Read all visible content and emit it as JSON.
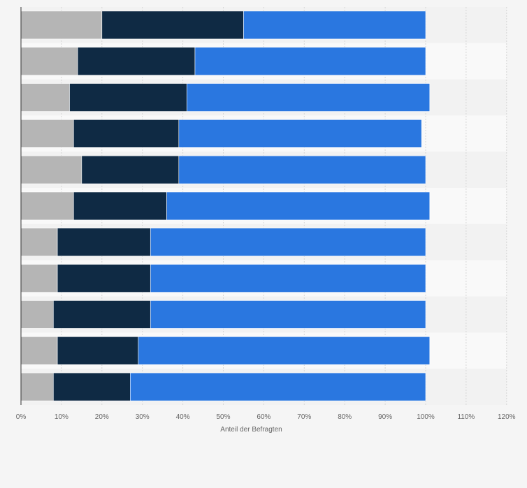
{
  "chart_data": {
    "type": "bar",
    "orientation": "horizontal",
    "stacked": true,
    "categories": [
      "",
      "",
      "",
      "",
      "",
      "",
      "",
      "",
      "",
      "",
      ""
    ],
    "series": [
      {
        "values": [
          20,
          14,
          12,
          13,
          15,
          13,
          9,
          9,
          8,
          9,
          8
        ],
        "color": "#b5b5b5"
      },
      {
        "values": [
          35,
          29,
          29,
          26,
          24,
          23,
          23,
          23,
          24,
          20,
          19
        ],
        "color": "#0f2a44"
      },
      {
        "values": [
          45,
          57,
          60,
          60,
          61,
          65,
          68,
          68,
          68,
          72,
          73
        ],
        "color": "#2a77e0"
      }
    ],
    "x_ticks": [
      "0%",
      "10%",
      "20%",
      "30%",
      "40%",
      "50%",
      "60%",
      "70%",
      "80%",
      "90%",
      "100%",
      "110%",
      "120%"
    ],
    "xlim": [
      0,
      120
    ],
    "xlabel": "Anteil der Befragten",
    "grid": true
  }
}
